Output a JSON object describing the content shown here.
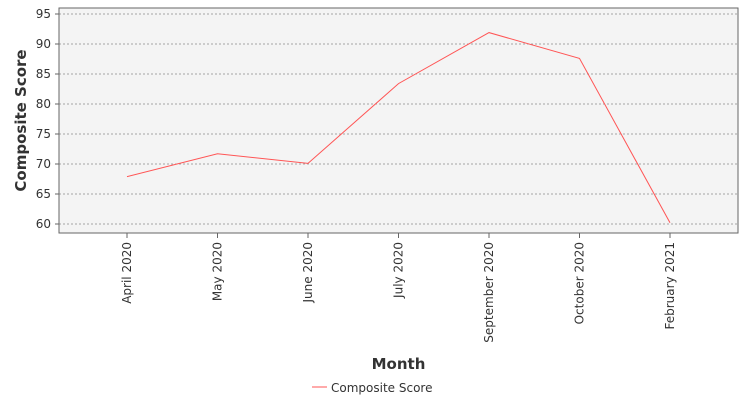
{
  "chart_data": {
    "type": "line",
    "title": "",
    "xlabel": "Month",
    "ylabel": "Composite Score",
    "categories": [
      "April 2020",
      "May 2020",
      "June 2020",
      "July 2020",
      "September 2020",
      "October 2020",
      "February 2021"
    ],
    "series": [
      {
        "name": "Composite Score",
        "color": "#ff5555",
        "values": [
          67.9,
          71.7,
          70.1,
          83.4,
          91.9,
          87.6,
          60.2
        ]
      }
    ],
    "ylim": [
      58.5,
      96
    ],
    "yticks": [
      60,
      65,
      70,
      75,
      80,
      85,
      90,
      95
    ],
    "grid": true,
    "legend_position": "bottom-center",
    "colors": {
      "plot_background": "#f4f4f4",
      "grid": "#888888",
      "axis": "#666666"
    }
  }
}
